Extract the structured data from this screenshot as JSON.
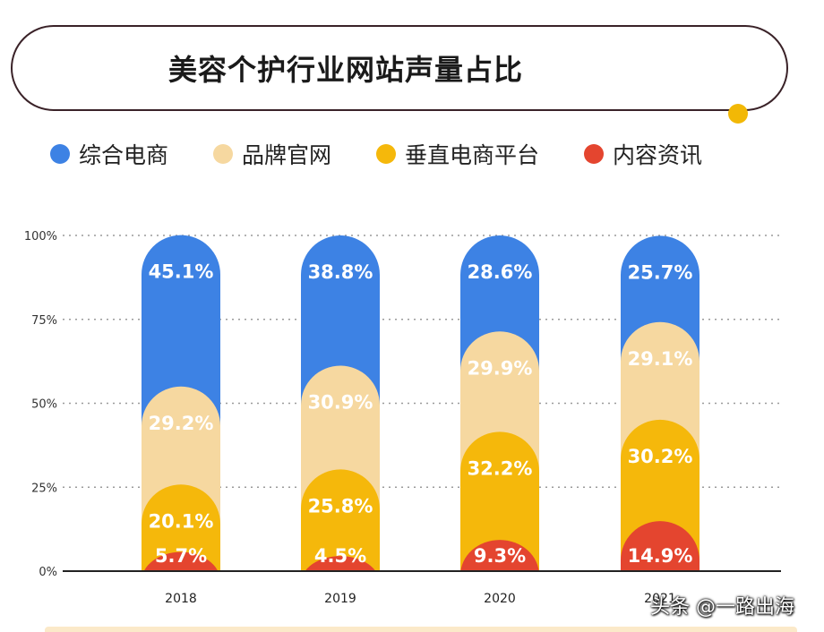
{
  "title": "美容个护行业网站声量占比",
  "accent_color": "#f2b806",
  "watermark": "头条 @一路出海",
  "chart_data": {
    "type": "bar",
    "stacked": true,
    "categories": [
      "2018",
      "2019",
      "2020",
      "2021"
    ],
    "series": [
      {
        "name": "内容资讯",
        "color": "#e4452f",
        "values": [
          5.7,
          4.5,
          9.3,
          14.9
        ],
        "labels": [
          "5.7%",
          "4.5%",
          "9.3%",
          "14.9%"
        ]
      },
      {
        "name": "垂直电商平台",
        "color": "#f5b80b",
        "values": [
          20.1,
          25.8,
          32.2,
          30.2
        ],
        "labels": [
          "20.1%",
          "25.8%",
          "32.2%",
          "30.2%"
        ]
      },
      {
        "name": "品牌官网",
        "color": "#f6d8a0",
        "values": [
          29.2,
          30.9,
          29.9,
          29.1
        ],
        "labels": [
          "29.2%",
          "30.9%",
          "29.9%",
          "29.1%"
        ]
      },
      {
        "name": "综合电商",
        "color": "#3d82e4",
        "values": [
          45.1,
          38.8,
          28.6,
          25.7
        ],
        "labels": [
          "45.1%",
          "38.8%",
          "28.6%",
          "25.7%"
        ]
      }
    ],
    "legend_order": [
      "综合电商",
      "品牌官网",
      "垂直电商平台",
      "内容资讯"
    ],
    "ylim": [
      0,
      100
    ],
    "yticks": [
      0,
      25,
      50,
      75,
      100
    ],
    "ytick_labels": [
      "0%",
      "25%",
      "50%",
      "75%",
      "100%"
    ],
    "grid": true,
    "legend_position": "top-left"
  }
}
